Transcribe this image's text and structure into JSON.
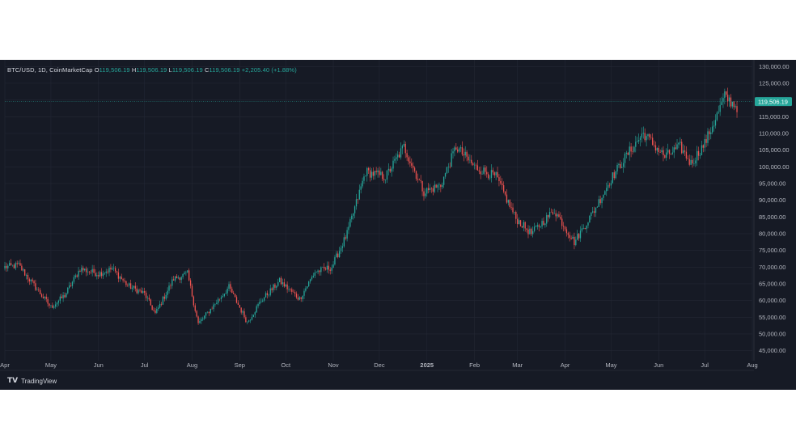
{
  "legend": {
    "symbol": "BTC/USD, 1D, CoinMarketCap",
    "o_label": "O",
    "o_value": "119,506.19",
    "h_label": "H",
    "h_value": "119,506.19",
    "l_label": "L",
    "l_value": "119,506.19",
    "c_label": "C",
    "c_value": "119,506.19",
    "change": "+2,205.40 (+1.88%)"
  },
  "brand": {
    "name": "TradingView"
  },
  "colors": {
    "up": "#26a69a",
    "down": "#ef5350",
    "grid": "#232734",
    "background": "#161a25",
    "axis_text": "#b2b5be"
  },
  "chart_data": {
    "type": "candlestick",
    "last_price": 119506.19,
    "last_price_label": "119,506.19",
    "ylim": [
      42000,
      132000
    ],
    "y_ticks": [
      45000,
      50000,
      55000,
      60000,
      65000,
      70000,
      75000,
      80000,
      85000,
      90000,
      95000,
      100000,
      105000,
      110000,
      115000,
      120000,
      125000,
      130000
    ],
    "y_tick_labels": [
      "45,000.00",
      "50,000.00",
      "55,000.00",
      "60,000.00",
      "65,000.00",
      "70,000.00",
      "75,000.00",
      "80,000.00",
      "85,000.00",
      "90,000.00",
      "95,000.00",
      "100,000.00",
      "105,000.00",
      "110,000.00",
      "115,000.00",
      "120,000.00",
      "125,000.00",
      "130,000.00"
    ],
    "x_labels": [
      "Apr",
      "May",
      "Jun",
      "Jul",
      "Aug",
      "Sep",
      "Oct",
      "Nov",
      "Dec",
      "2025",
      "Feb",
      "Mar",
      "Apr",
      "May",
      "Jun",
      "Jul",
      "Aug"
    ],
    "x_start": "2024-04-01",
    "x_end": "2025-08-01",
    "series": [
      {
        "date": "2024-04-01",
        "close": 70000
      },
      {
        "date": "2024-04-10",
        "close": 70500
      },
      {
        "date": "2024-04-20",
        "close": 64500
      },
      {
        "date": "2024-05-01",
        "close": 58000
      },
      {
        "date": "2024-05-10",
        "close": 61500
      },
      {
        "date": "2024-05-20",
        "close": 69500
      },
      {
        "date": "2024-06-01",
        "close": 68000
      },
      {
        "date": "2024-06-10",
        "close": 69500
      },
      {
        "date": "2024-06-20",
        "close": 64500
      },
      {
        "date": "2024-07-01",
        "close": 62000
      },
      {
        "date": "2024-07-08",
        "close": 56000
      },
      {
        "date": "2024-07-20",
        "close": 66500
      },
      {
        "date": "2024-07-29",
        "close": 68000
      },
      {
        "date": "2024-08-05",
        "close": 53000
      },
      {
        "date": "2024-08-15",
        "close": 58500
      },
      {
        "date": "2024-08-25",
        "close": 64000
      },
      {
        "date": "2024-09-06",
        "close": 53500
      },
      {
        "date": "2024-09-15",
        "close": 60000
      },
      {
        "date": "2024-09-27",
        "close": 65800
      },
      {
        "date": "2024-10-10",
        "close": 60500
      },
      {
        "date": "2024-10-20",
        "close": 68500
      },
      {
        "date": "2024-10-31",
        "close": 70000
      },
      {
        "date": "2024-11-10",
        "close": 80000
      },
      {
        "date": "2024-11-22",
        "close": 98500
      },
      {
        "date": "2024-12-05",
        "close": 97000
      },
      {
        "date": "2024-12-17",
        "close": 106000
      },
      {
        "date": "2024-12-30",
        "close": 92500
      },
      {
        "date": "2025-01-10",
        "close": 94500
      },
      {
        "date": "2025-01-20",
        "close": 106000
      },
      {
        "date": "2025-02-01",
        "close": 100000
      },
      {
        "date": "2025-02-15",
        "close": 97000
      },
      {
        "date": "2025-02-28",
        "close": 84500
      },
      {
        "date": "2025-03-10",
        "close": 80000
      },
      {
        "date": "2025-03-25",
        "close": 87000
      },
      {
        "date": "2025-04-07",
        "close": 77500
      },
      {
        "date": "2025-04-20",
        "close": 87000
      },
      {
        "date": "2025-05-01",
        "close": 96500
      },
      {
        "date": "2025-05-12",
        "close": 104000
      },
      {
        "date": "2025-05-22",
        "close": 110000
      },
      {
        "date": "2025-06-05",
        "close": 103000
      },
      {
        "date": "2025-06-15",
        "close": 106000
      },
      {
        "date": "2025-06-22",
        "close": 101000
      },
      {
        "date": "2025-07-01",
        "close": 107000
      },
      {
        "date": "2025-07-10",
        "close": 116500
      },
      {
        "date": "2025-07-14",
        "close": 121000
      },
      {
        "date": "2025-07-22",
        "close": 118000
      }
    ]
  }
}
